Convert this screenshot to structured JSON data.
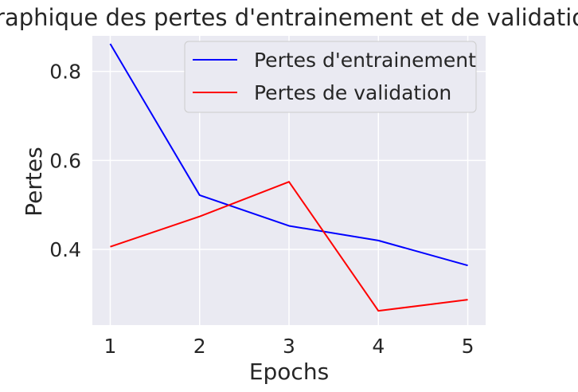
{
  "chart_data": {
    "type": "line",
    "title": "Graphique des pertes d'entrainement et de validation",
    "xlabel": "Epochs",
    "ylabel": "Pertes",
    "x": [
      1,
      2,
      3,
      4,
      5
    ],
    "xlim": [
      0.8,
      5.2
    ],
    "ylim": [
      0.23,
      0.88
    ],
    "xticks": [
      "1",
      "2",
      "3",
      "4",
      "5"
    ],
    "yticks": [
      {
        "value": 0.4,
        "label": "0.4"
      },
      {
        "value": 0.6,
        "label": "0.6"
      },
      {
        "value": 0.8,
        "label": "0.8"
      }
    ],
    "grid": true,
    "legend_position": "top-right",
    "series": [
      {
        "name": "Pertes d'entrainement",
        "color": "#0000ff",
        "values": [
          0.862,
          0.522,
          0.453,
          0.42,
          0.364
        ]
      },
      {
        "name": "Pertes de validation",
        "color": "#ff0000",
        "values": [
          0.406,
          0.474,
          0.552,
          0.262,
          0.287
        ]
      }
    ]
  }
}
